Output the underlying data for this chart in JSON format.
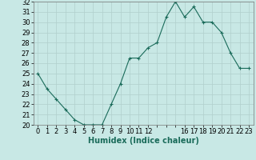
{
  "x": [
    0,
    1,
    2,
    3,
    4,
    5,
    6,
    7,
    8,
    9,
    10,
    11,
    12,
    13,
    14,
    15,
    16,
    17,
    18,
    19,
    20,
    21,
    22,
    23
  ],
  "y": [
    25.0,
    23.5,
    22.5,
    21.5,
    20.5,
    20.0,
    20.0,
    20.0,
    22.0,
    24.0,
    26.5,
    26.5,
    27.5,
    28.0,
    30.5,
    32.0,
    30.5,
    31.5,
    30.0,
    30.0,
    29.0,
    27.0,
    25.5,
    25.5
  ],
  "xlabel": "Humidex (Indice chaleur)",
  "xlim": [
    -0.5,
    23.5
  ],
  "ylim": [
    20,
    32
  ],
  "yticks": [
    20,
    21,
    22,
    23,
    24,
    25,
    26,
    27,
    28,
    29,
    30,
    31,
    32
  ],
  "xtick_shown": [
    0,
    1,
    2,
    3,
    4,
    5,
    6,
    7,
    8,
    9,
    10,
    11,
    12,
    16,
    17,
    18,
    19,
    20,
    21,
    22,
    23
  ],
  "line_color": "#1a6b5a",
  "bg_color": "#c8e8e5",
  "grid_color": "#b0cfcc",
  "xlabel_fontsize": 7,
  "tick_fontsize": 6
}
